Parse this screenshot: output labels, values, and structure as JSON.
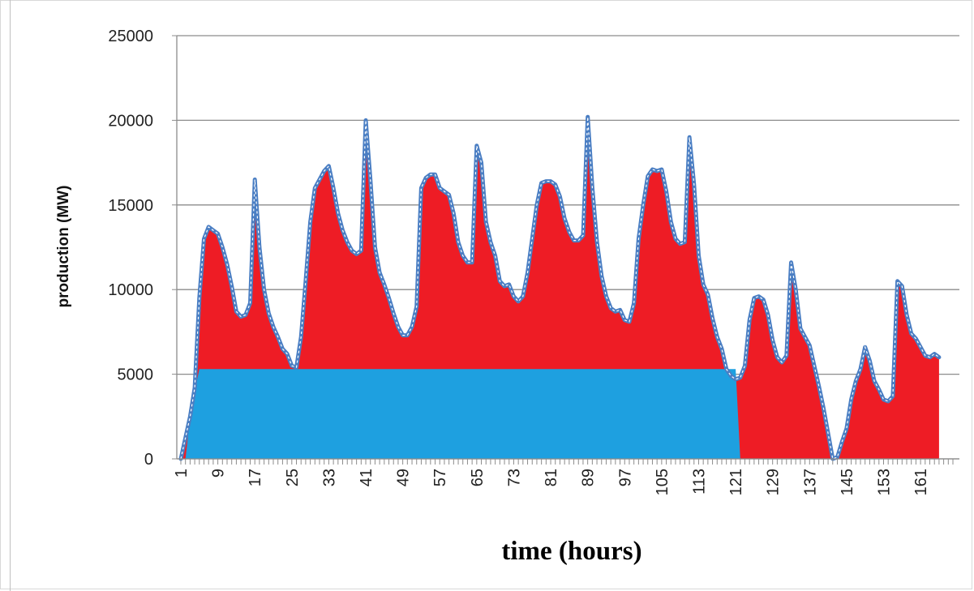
{
  "chart_data": {
    "type": "area",
    "title": "",
    "xlabel": "time (hours)",
    "ylabel": "production (MW)",
    "xlim": [
      1,
      168
    ],
    "ylim": [
      0,
      25000
    ],
    "yticks": [
      0,
      5000,
      10000,
      15000,
      20000,
      25000
    ],
    "xticks": [
      1,
      9,
      17,
      25,
      33,
      41,
      49,
      57,
      65,
      73,
      81,
      89,
      97,
      105,
      113,
      121,
      129,
      137,
      145,
      153,
      161
    ],
    "grid": "horizontal",
    "legend": "none",
    "colors": {
      "lower_area": "#1ea0e0",
      "upper_area": "#ee1c25",
      "total_line": "#4a7ec3",
      "grid": "#8c8c8c"
    },
    "series": [
      {
        "values": [
          [
            1,
            0
          ],
          [
            2,
            0
          ],
          [
            3,
            2500
          ],
          [
            4,
            4000
          ],
          [
            5,
            5300
          ],
          [
            6,
            5300
          ],
          [
            121,
            5300
          ],
          [
            122,
            0
          ]
        ]
      },
      {
        "values": [
          [
            1,
            0
          ],
          [
            3,
            2500
          ],
          [
            4,
            4200
          ],
          [
            5,
            9500
          ],
          [
            6,
            13000
          ],
          [
            7,
            13700
          ],
          [
            8,
            13500
          ],
          [
            9,
            13300
          ],
          [
            10,
            12500
          ],
          [
            11,
            11500
          ],
          [
            12,
            10200
          ],
          [
            13,
            8700
          ],
          [
            14,
            8400
          ],
          [
            15,
            8500
          ],
          [
            16,
            9200
          ],
          [
            17,
            16500
          ],
          [
            18,
            12500
          ],
          [
            19,
            10000
          ],
          [
            20,
            8600
          ],
          [
            21,
            7800
          ],
          [
            22,
            7200
          ],
          [
            23,
            6500
          ],
          [
            24,
            6200
          ],
          [
            25,
            5500
          ],
          [
            26,
            5400
          ],
          [
            27,
            7200
          ],
          [
            28,
            10500
          ],
          [
            29,
            14000
          ],
          [
            30,
            16000
          ],
          [
            31,
            16500
          ],
          [
            32,
            17000
          ],
          [
            33,
            17300
          ],
          [
            34,
            16000
          ],
          [
            35,
            14500
          ],
          [
            36,
            13500
          ],
          [
            37,
            12800
          ],
          [
            38,
            12300
          ],
          [
            39,
            12100
          ],
          [
            40,
            12300
          ],
          [
            41,
            20000
          ],
          [
            42,
            16500
          ],
          [
            43,
            12500
          ],
          [
            44,
            11000
          ],
          [
            45,
            10300
          ],
          [
            46,
            9500
          ],
          [
            47,
            8600
          ],
          [
            48,
            7800
          ],
          [
            49,
            7300
          ],
          [
            50,
            7300
          ],
          [
            51,
            7800
          ],
          [
            52,
            9000
          ],
          [
            53,
            16000
          ],
          [
            54,
            16600
          ],
          [
            55,
            16800
          ],
          [
            56,
            16800
          ],
          [
            57,
            16000
          ],
          [
            58,
            15800
          ],
          [
            59,
            15600
          ],
          [
            60,
            14500
          ],
          [
            61,
            12800
          ],
          [
            62,
            12000
          ],
          [
            63,
            11600
          ],
          [
            64,
            11600
          ],
          [
            65,
            18500
          ],
          [
            66,
            17500
          ],
          [
            67,
            14000
          ],
          [
            68,
            12800
          ],
          [
            69,
            12000
          ],
          [
            70,
            10500
          ],
          [
            71,
            10200
          ],
          [
            72,
            10300
          ],
          [
            73,
            9600
          ],
          [
            74,
            9300
          ],
          [
            75,
            9600
          ],
          [
            76,
            11000
          ],
          [
            77,
            13000
          ],
          [
            78,
            15000
          ],
          [
            79,
            16300
          ],
          [
            80,
            16400
          ],
          [
            81,
            16400
          ],
          [
            82,
            16200
          ],
          [
            83,
            15500
          ],
          [
            84,
            14200
          ],
          [
            85,
            13400
          ],
          [
            86,
            12900
          ],
          [
            87,
            12900
          ],
          [
            88,
            13200
          ],
          [
            89,
            20200
          ],
          [
            90,
            16000
          ],
          [
            91,
            12800
          ],
          [
            92,
            10800
          ],
          [
            93,
            9600
          ],
          [
            94,
            8900
          ],
          [
            95,
            8700
          ],
          [
            96,
            8800
          ],
          [
            97,
            8200
          ],
          [
            98,
            8100
          ],
          [
            99,
            9200
          ],
          [
            100,
            13000
          ],
          [
            101,
            15000
          ],
          [
            102,
            16700
          ],
          [
            103,
            17100
          ],
          [
            104,
            17000
          ],
          [
            105,
            17100
          ],
          [
            106,
            15800
          ],
          [
            107,
            14000
          ],
          [
            108,
            13000
          ],
          [
            109,
            12700
          ],
          [
            110,
            12800
          ],
          [
            111,
            19000
          ],
          [
            112,
            16200
          ],
          [
            113,
            12000
          ],
          [
            114,
            10300
          ],
          [
            115,
            9700
          ],
          [
            116,
            8300
          ],
          [
            117,
            7200
          ],
          [
            118,
            6500
          ],
          [
            119,
            5300
          ],
          [
            120,
            4900
          ],
          [
            121,
            4700
          ],
          [
            122,
            4800
          ],
          [
            123,
            5500
          ],
          [
            124,
            8200
          ],
          [
            125,
            9500
          ],
          [
            126,
            9600
          ],
          [
            127,
            9400
          ],
          [
            128,
            8500
          ],
          [
            129,
            7000
          ],
          [
            130,
            6000
          ],
          [
            131,
            5700
          ],
          [
            132,
            6100
          ],
          [
            133,
            11600
          ],
          [
            134,
            10000
          ],
          [
            135,
            7700
          ],
          [
            136,
            7200
          ],
          [
            137,
            6700
          ],
          [
            138,
            5500
          ],
          [
            139,
            4300
          ],
          [
            140,
            3000
          ],
          [
            141,
            1500
          ],
          [
            142,
            0
          ],
          [
            143,
            100
          ],
          [
            144,
            1000
          ],
          [
            145,
            1800
          ],
          [
            146,
            3500
          ],
          [
            147,
            4600
          ],
          [
            148,
            5300
          ],
          [
            149,
            6600
          ],
          [
            150,
            5800
          ],
          [
            151,
            4600
          ],
          [
            152,
            4100
          ],
          [
            153,
            3500
          ],
          [
            154,
            3400
          ],
          [
            155,
            3700
          ],
          [
            156,
            10500
          ],
          [
            157,
            10200
          ],
          [
            158,
            8500
          ],
          [
            159,
            7400
          ],
          [
            160,
            7100
          ],
          [
            161,
            6600
          ],
          [
            162,
            6100
          ],
          [
            163,
            6000
          ],
          [
            164,
            6200
          ],
          [
            165,
            6000
          ]
        ]
      }
    ]
  }
}
